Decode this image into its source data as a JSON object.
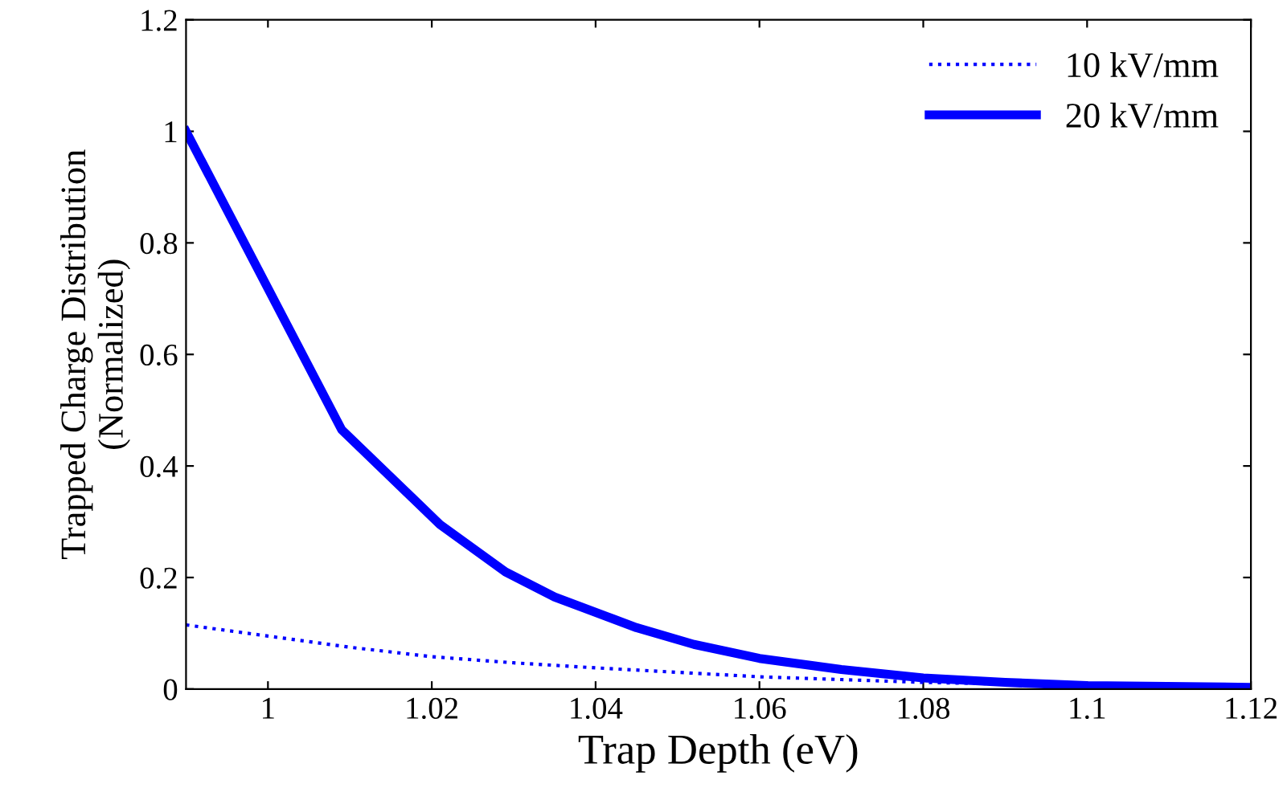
{
  "chart_data": {
    "type": "line",
    "xlabel": "Trap Depth (eV)",
    "ylabel": "Trapped Charge Distribution\n(Normalized)",
    "xlim": [
      0.99,
      1.12
    ],
    "xticks": [
      1,
      1.02,
      1.04,
      1.06,
      1.08,
      1.1,
      1.12
    ],
    "ylim": [
      0,
      1.2
    ],
    "yticks": [
      0,
      0.2,
      0.4,
      0.6,
      0.8,
      1,
      1.2
    ],
    "grid": false,
    "legend": "top right",
    "marker": "none",
    "series": [
      {
        "name": "10 kV/mm",
        "color": "#0000ff",
        "line_style": "dotted",
        "x": [
          0.99,
          1.0,
          1.01,
          1.02,
          1.03,
          1.04,
          1.05,
          1.06,
          1.07,
          1.08,
          1.1,
          1.12
        ],
        "values": [
          0.115,
          0.095,
          0.075,
          0.058,
          0.047,
          0.038,
          0.03,
          0.022,
          0.017,
          0.012,
          0.006,
          0.003
        ]
      },
      {
        "name": "20 kV/mm",
        "color": "#0000ff",
        "line_style": "solid",
        "x": [
          0.99,
          1.009,
          1.021,
          1.029,
          1.035,
          1.045,
          1.052,
          1.06,
          1.07,
          1.08,
          1.09,
          1.1,
          1.12
        ],
        "values": [
          1,
          0.465,
          0.295,
          0.21,
          0.165,
          0.11,
          0.08,
          0.055,
          0.035,
          0.02,
          0.012,
          0.006,
          0.003
        ]
      }
    ]
  }
}
